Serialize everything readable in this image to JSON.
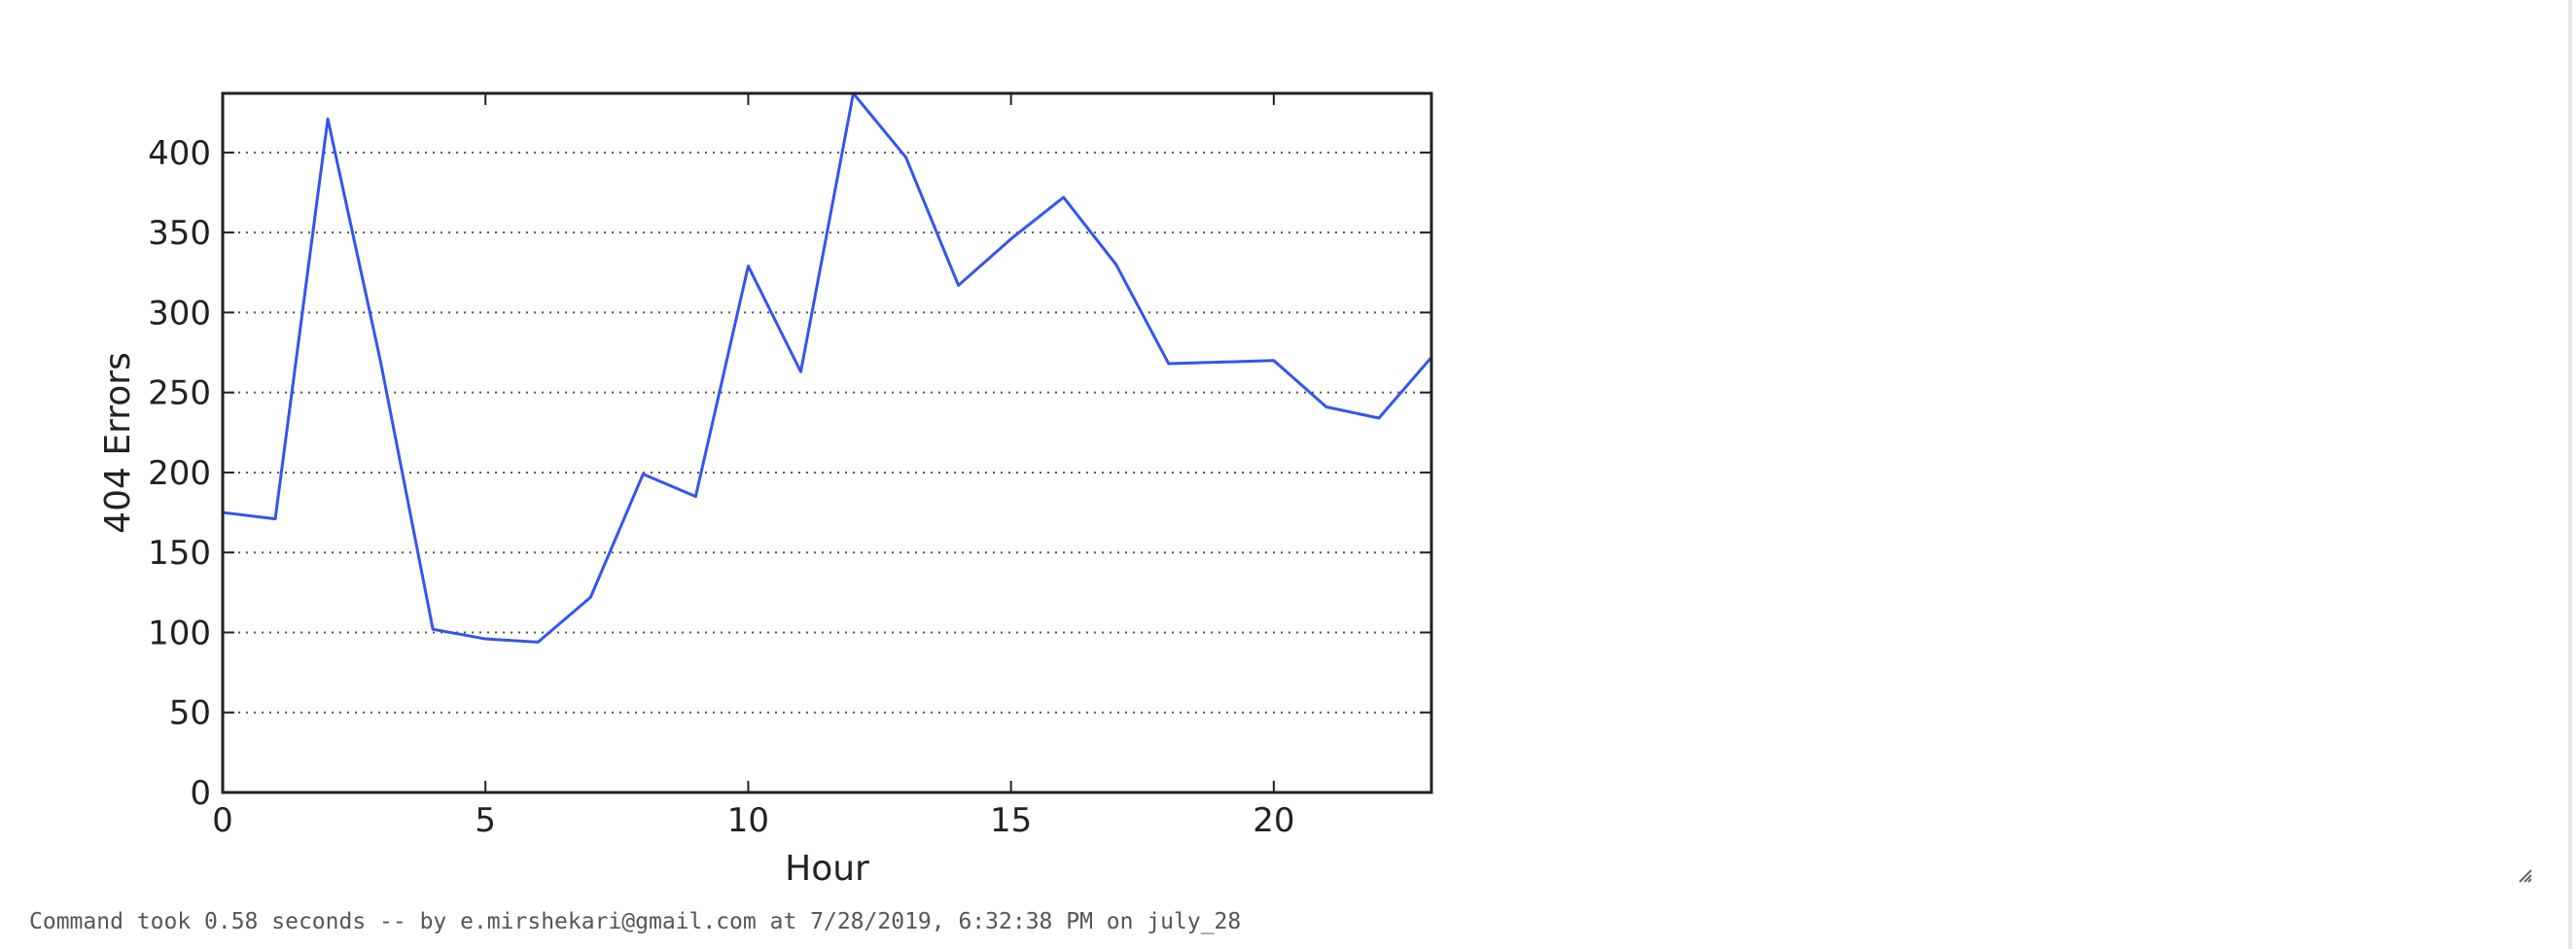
{
  "chart_data": {
    "type": "line",
    "title": "",
    "xlabel": "Hour",
    "ylabel": "404 Errors",
    "xlim": [
      0,
      23
    ],
    "ylim": [
      0,
      437
    ],
    "x_ticks": [
      "0",
      "5",
      "10",
      "15",
      "20"
    ],
    "y_ticks": [
      "0",
      "50",
      "100",
      "150",
      "200",
      "250",
      "300",
      "350",
      "400"
    ],
    "grid": "horizontal-dotted",
    "line_color": "#3355ee",
    "series": [
      {
        "x": [
          0,
          1,
          2,
          3,
          4,
          5,
          6,
          7,
          8,
          9,
          10,
          11,
          12,
          13,
          14,
          15,
          16,
          17,
          18,
          19,
          20,
          21,
          22,
          23
        ],
        "values": [
          175,
          171,
          421,
          270,
          102,
          96,
          94,
          122,
          199,
          185,
          329,
          263,
          437,
          397,
          317,
          346,
          372,
          330,
          268,
          269,
          270,
          241,
          234,
          272
        ]
      }
    ]
  },
  "footer": {
    "text": "Command took 0.58 seconds -- by e.mirshekari@gmail.com at 7/28/2019, 6:32:38 PM on july_28"
  }
}
